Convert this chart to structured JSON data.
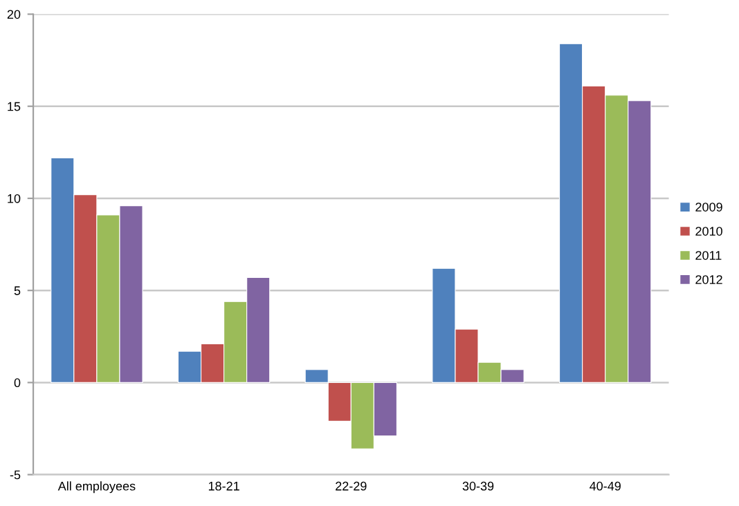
{
  "chart_data": {
    "type": "bar",
    "categories": [
      "All employees",
      "18-21",
      "22-29",
      "30-39",
      "40-49"
    ],
    "series": [
      {
        "name": "2009",
        "color": "#4f81bd",
        "values": [
          12.2,
          1.7,
          0.7,
          6.2,
          18.4
        ]
      },
      {
        "name": "2010",
        "color": "#c0504d",
        "values": [
          10.2,
          2.1,
          -2.1,
          2.9,
          16.1
        ]
      },
      {
        "name": "2011",
        "color": "#9bbb59",
        "values": [
          9.1,
          4.4,
          -3.6,
          1.1,
          15.6
        ]
      },
      {
        "name": "2012",
        "color": "#8064a2",
        "values": [
          9.6,
          5.7,
          -2.9,
          0.7,
          15.3
        ]
      }
    ],
    "ylim": [
      -5,
      20
    ],
    "yticks": [
      -5,
      0,
      5,
      10,
      15,
      20
    ],
    "grid": "y",
    "legend": "right"
  }
}
